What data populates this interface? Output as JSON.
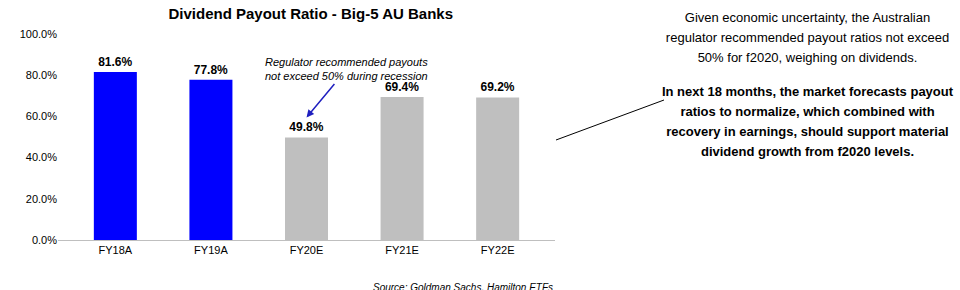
{
  "chart_data": {
    "type": "bar",
    "title": "Dividend Payout Ratio - Big-5 AU Banks",
    "categories": [
      "FY18A",
      "FY19A",
      "FY20E",
      "FY21E",
      "FY22E"
    ],
    "values": [
      81.6,
      77.8,
      49.8,
      69.4,
      69.2
    ],
    "value_labels": [
      "81.6%",
      "77.8%",
      "49.8%",
      "69.4%",
      "69.2%"
    ],
    "colors": [
      "#0000FF",
      "#0000FF",
      "#BFBFBF",
      "#BFBFBF",
      "#BFBFBF"
    ],
    "ylim": [
      0,
      100
    ],
    "yticks": [
      {
        "value": 0,
        "label": "0.0%"
      },
      {
        "value": 20,
        "label": "20.0%"
      },
      {
        "value": 40,
        "label": "40.0%"
      },
      {
        "value": 60,
        "label": "60.0%"
      },
      {
        "value": 80,
        "label": "80.0%"
      },
      {
        "value": 100,
        "label": "100.0%"
      }
    ],
    "grid": false,
    "data_labels": true,
    "annotation": {
      "lines": [
        "Regulator recommended payouts",
        "not exceed 50% during recession"
      ],
      "category": "FY20E"
    },
    "source": "Source: Goldman Sachs, Hamilton ETFs"
  },
  "side_text": {
    "paragraphs": [
      {
        "text": "Given economic uncertainty, the Australian regulator recommended payout ratios not exceed 50% for f2020, weighing on dividends.",
        "bold": false
      },
      {
        "text": "In next 18 months, the market forecasts payout ratios to normalize, which combined with recovery in earnings, should support material dividend growth from f2020 levels.",
        "bold": true
      }
    ]
  }
}
